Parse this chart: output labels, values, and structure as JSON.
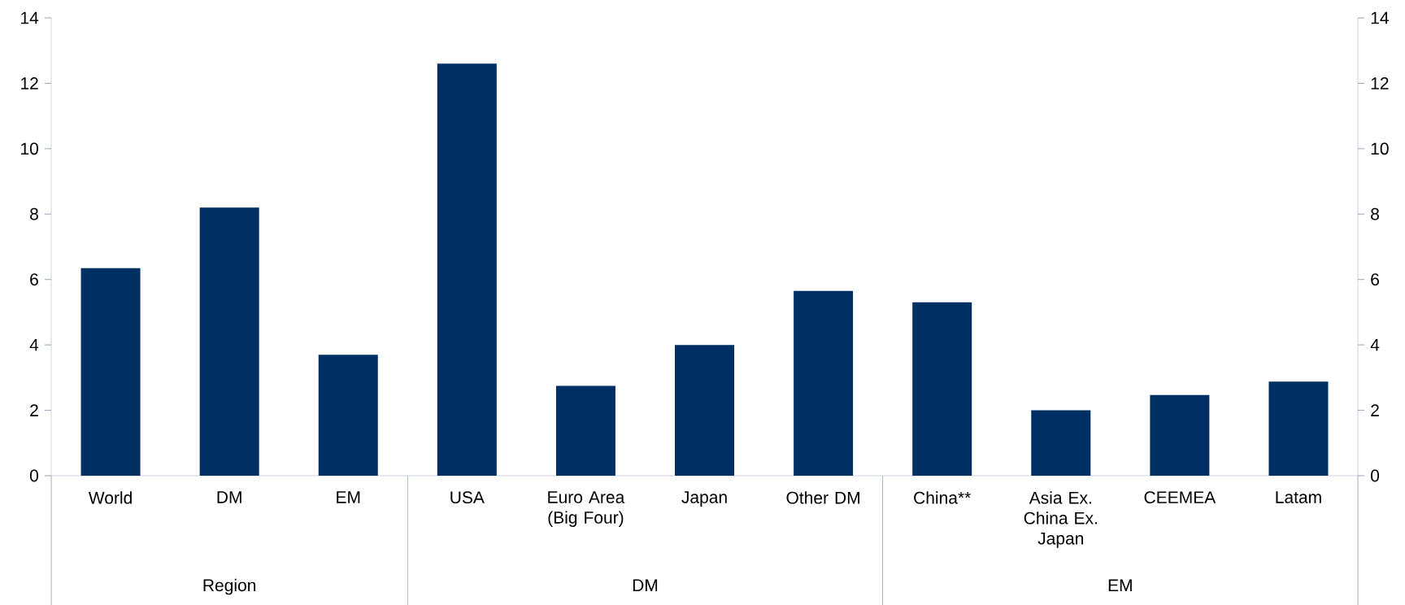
{
  "chart_data": {
    "type": "bar",
    "categories": [
      "World",
      "DM",
      "EM",
      "USA",
      "Euro Area (Big Four)",
      "Japan",
      "Other DM",
      "China**",
      "Asia Ex. China Ex. Japan",
      "CEEMEA",
      "Latam"
    ],
    "values": [
      6.35,
      8.2,
      3.7,
      12.6,
      2.75,
      4.0,
      5.65,
      5.3,
      2.0,
      2.47,
      2.88
    ],
    "color": "#003063",
    "ylim": [
      0,
      14
    ],
    "yticks": [
      0,
      2,
      4,
      6,
      8,
      10,
      12,
      14
    ],
    "y2lim": [
      0,
      14
    ],
    "y2ticks": [
      0,
      2,
      4,
      6,
      8,
      10,
      12,
      14
    ],
    "annotations": [
      "Region",
      "DM",
      "EM"
    ]
  }
}
